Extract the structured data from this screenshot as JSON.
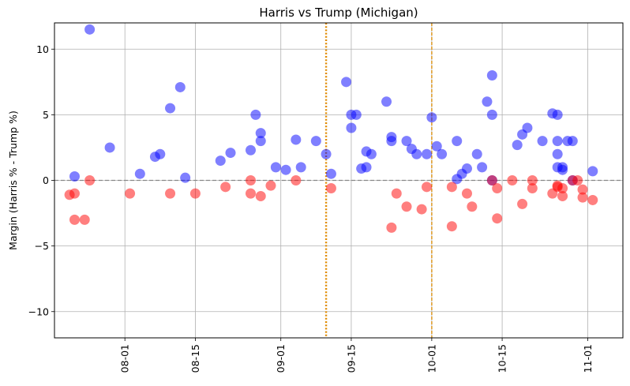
{
  "chart_data": {
    "type": "scatter",
    "title": "Harris vs Trump (Michigan)",
    "xlabel": "",
    "ylabel": "Margin (Harris % - Trump %)",
    "x_axis": "date",
    "xlim": [
      "2024-07-18",
      "2024-11-08"
    ],
    "ylim": [
      -12,
      12
    ],
    "x_ticks": [
      {
        "date": "2024-08-01",
        "label": "08-01"
      },
      {
        "date": "2024-08-15",
        "label": "08-15"
      },
      {
        "date": "2024-09-01",
        "label": "09-01"
      },
      {
        "date": "2024-09-15",
        "label": "09-15"
      },
      {
        "date": "2024-10-01",
        "label": "10-01"
      },
      {
        "date": "2024-10-15",
        "label": "10-15"
      },
      {
        "date": "2024-11-01",
        "label": "11-01"
      }
    ],
    "y_ticks": [
      {
        "value": -10,
        "label": "−10"
      },
      {
        "value": -5,
        "label": "−5"
      },
      {
        "value": 0,
        "label": "0"
      },
      {
        "value": 5,
        "label": "5"
      },
      {
        "value": 10,
        "label": "10"
      }
    ],
    "grid": true,
    "zero_line": {
      "value": 0,
      "color": "#888888",
      "style": "dashed"
    },
    "vertical_lines": [
      {
        "date": "2024-09-10",
        "color": "#e08a00",
        "style": "dotted"
      },
      {
        "date": "2024-10-01",
        "color": "#e0a030",
        "style": "dashed"
      }
    ],
    "series": [
      {
        "color": "#0000ff",
        "points": [
          {
            "x": "2024-07-22",
            "y": 0.3
          },
          {
            "x": "2024-07-25",
            "y": 11.5
          },
          {
            "x": "2024-07-29",
            "y": 2.5
          },
          {
            "x": "2024-08-04",
            "y": 0.5
          },
          {
            "x": "2024-08-07",
            "y": 1.8
          },
          {
            "x": "2024-08-08",
            "y": 2.0
          },
          {
            "x": "2024-08-10",
            "y": 5.5
          },
          {
            "x": "2024-08-12",
            "y": 7.1
          },
          {
            "x": "2024-08-13",
            "y": 0.2
          },
          {
            "x": "2024-08-20",
            "y": 1.5
          },
          {
            "x": "2024-08-22",
            "y": 2.1
          },
          {
            "x": "2024-08-26",
            "y": 2.3
          },
          {
            "x": "2024-08-27",
            "y": 5.0
          },
          {
            "x": "2024-08-28",
            "y": 3.6
          },
          {
            "x": "2024-08-28",
            "y": 3.0
          },
          {
            "x": "2024-08-31",
            "y": 1.0
          },
          {
            "x": "2024-09-02",
            "y": 0.8
          },
          {
            "x": "2024-09-04",
            "y": 3.1
          },
          {
            "x": "2024-09-05",
            "y": 1.0
          },
          {
            "x": "2024-09-08",
            "y": 3.0
          },
          {
            "x": "2024-09-10",
            "y": 2.0
          },
          {
            "x": "2024-09-11",
            "y": 0.5
          },
          {
            "x": "2024-09-14",
            "y": 7.5
          },
          {
            "x": "2024-09-15",
            "y": 5.0
          },
          {
            "x": "2024-09-15",
            "y": 4.0
          },
          {
            "x": "2024-09-16",
            "y": 5.0
          },
          {
            "x": "2024-09-17",
            "y": 0.9
          },
          {
            "x": "2024-09-18",
            "y": 2.2
          },
          {
            "x": "2024-09-18",
            "y": 1.0
          },
          {
            "x": "2024-09-19",
            "y": 2.0
          },
          {
            "x": "2024-09-22",
            "y": 6.0
          },
          {
            "x": "2024-09-23",
            "y": 3.3
          },
          {
            "x": "2024-09-23",
            "y": 3.0
          },
          {
            "x": "2024-09-26",
            "y": 3.0
          },
          {
            "x": "2024-09-27",
            "y": 2.4
          },
          {
            "x": "2024-09-28",
            "y": 2.0
          },
          {
            "x": "2024-09-30",
            "y": 2.0
          },
          {
            "x": "2024-10-01",
            "y": 4.8
          },
          {
            "x": "2024-10-02",
            "y": 2.6
          },
          {
            "x": "2024-10-03",
            "y": 2.0
          },
          {
            "x": "2024-10-06",
            "y": 3.0
          },
          {
            "x": "2024-10-06",
            "y": 0.1
          },
          {
            "x": "2024-10-07",
            "y": 0.5
          },
          {
            "x": "2024-10-08",
            "y": 0.9
          },
          {
            "x": "2024-10-10",
            "y": 2.0
          },
          {
            "x": "2024-10-11",
            "y": 1.0
          },
          {
            "x": "2024-10-12",
            "y": 6.0
          },
          {
            "x": "2024-10-13",
            "y": 5.0
          },
          {
            "x": "2024-10-13",
            "y": 8.0
          },
          {
            "x": "2024-10-13",
            "y": 0.0
          },
          {
            "x": "2024-10-18",
            "y": 2.7
          },
          {
            "x": "2024-10-19",
            "y": 3.5
          },
          {
            "x": "2024-10-20",
            "y": 4.0
          },
          {
            "x": "2024-10-23",
            "y": 3.0
          },
          {
            "x": "2024-10-25",
            "y": 5.1
          },
          {
            "x": "2024-10-26",
            "y": 5.0
          },
          {
            "x": "2024-10-26",
            "y": 3.0
          },
          {
            "x": "2024-10-26",
            "y": 2.0
          },
          {
            "x": "2024-10-26",
            "y": 1.0
          },
          {
            "x": "2024-10-27",
            "y": 1.0
          },
          {
            "x": "2024-10-27",
            "y": 0.8
          },
          {
            "x": "2024-10-28",
            "y": 3.0
          },
          {
            "x": "2024-10-29",
            "y": 3.0
          },
          {
            "x": "2024-10-29",
            "y": 0.0
          },
          {
            "x": "2024-11-02",
            "y": 0.7
          }
        ]
      },
      {
        "color": "#ff0000",
        "points": [
          {
            "x": "2024-07-21",
            "y": -1.1
          },
          {
            "x": "2024-07-22",
            "y": -1.0
          },
          {
            "x": "2024-07-22",
            "y": -3.0
          },
          {
            "x": "2024-07-24",
            "y": -3.0
          },
          {
            "x": "2024-07-25",
            "y": 0.0
          },
          {
            "x": "2024-08-02",
            "y": -1.0
          },
          {
            "x": "2024-08-10",
            "y": -1.0
          },
          {
            "x": "2024-08-15",
            "y": -1.0
          },
          {
            "x": "2024-08-21",
            "y": -0.5
          },
          {
            "x": "2024-08-26",
            "y": -1.0
          },
          {
            "x": "2024-08-26",
            "y": 0.0
          },
          {
            "x": "2024-08-28",
            "y": -1.2
          },
          {
            "x": "2024-08-30",
            "y": -0.4
          },
          {
            "x": "2024-09-04",
            "y": 0.0
          },
          {
            "x": "2024-09-11",
            "y": -0.6
          },
          {
            "x": "2024-09-23",
            "y": -3.6
          },
          {
            "x": "2024-09-24",
            "y": -1.0
          },
          {
            "x": "2024-09-26",
            "y": -2.0
          },
          {
            "x": "2024-09-29",
            "y": -2.2
          },
          {
            "x": "2024-09-30",
            "y": -0.5
          },
          {
            "x": "2024-10-05",
            "y": -3.5
          },
          {
            "x": "2024-10-05",
            "y": -0.5
          },
          {
            "x": "2024-10-08",
            "y": -1.0
          },
          {
            "x": "2024-10-09",
            "y": -2.0
          },
          {
            "x": "2024-10-13",
            "y": 0.0
          },
          {
            "x": "2024-10-14",
            "y": -0.6
          },
          {
            "x": "2024-10-14",
            "y": -2.9
          },
          {
            "x": "2024-10-17",
            "y": 0.0
          },
          {
            "x": "2024-10-19",
            "y": -1.8
          },
          {
            "x": "2024-10-21",
            "y": -0.6
          },
          {
            "x": "2024-10-21",
            "y": 0.0
          },
          {
            "x": "2024-10-25",
            "y": -1.0
          },
          {
            "x": "2024-10-26",
            "y": -0.5
          },
          {
            "x": "2024-10-26",
            "y": -0.4
          },
          {
            "x": "2024-10-27",
            "y": -0.6
          },
          {
            "x": "2024-10-27",
            "y": -1.2
          },
          {
            "x": "2024-10-29",
            "y": 0.0
          },
          {
            "x": "2024-10-30",
            "y": 0.0
          },
          {
            "x": "2024-10-31",
            "y": -0.7
          },
          {
            "x": "2024-10-31",
            "y": -1.3
          },
          {
            "x": "2024-11-02",
            "y": -1.5
          }
        ]
      }
    ]
  }
}
